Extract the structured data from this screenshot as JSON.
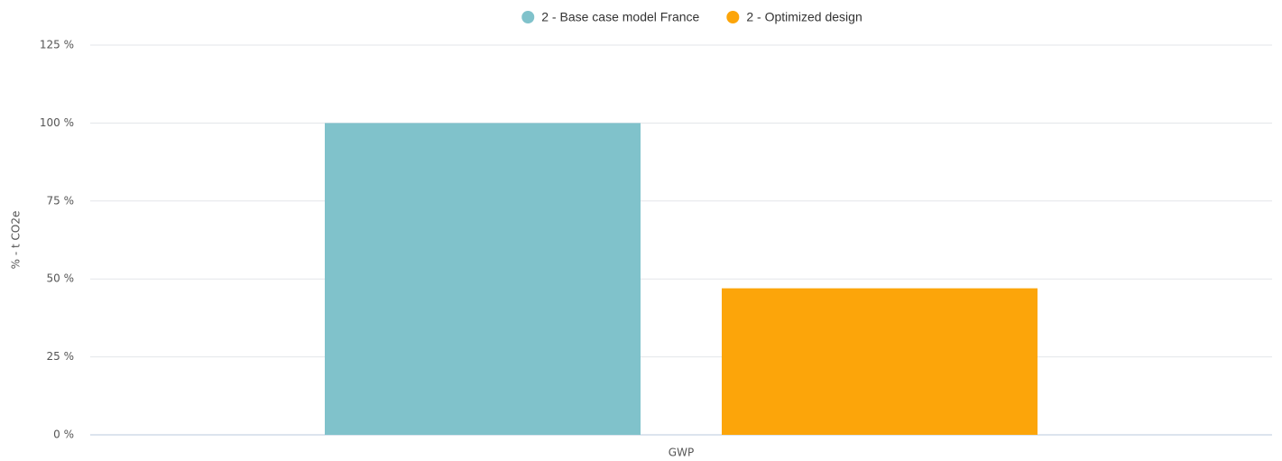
{
  "chart_data": {
    "type": "bar",
    "y_label": "% - t CO2e",
    "categories": [
      "GWP"
    ],
    "series": [
      {
        "name": "2 - Base case model France",
        "color": "#80c2cb",
        "values": [
          100
        ]
      },
      {
        "name": "2 - Optimized design",
        "color": "#fca50a",
        "values": [
          47
        ]
      }
    ],
    "ylim": [
      0,
      125
    ],
    "yticks": [
      {
        "value": 0,
        "label": "0 %"
      },
      {
        "value": 25,
        "label": "25 %"
      },
      {
        "value": 50,
        "label": "50 %"
      },
      {
        "value": 75,
        "label": "75 %"
      },
      {
        "value": 100,
        "label": "100 %"
      },
      {
        "value": 125,
        "label": "125 %"
      }
    ],
    "grid": true,
    "legend": "top"
  }
}
